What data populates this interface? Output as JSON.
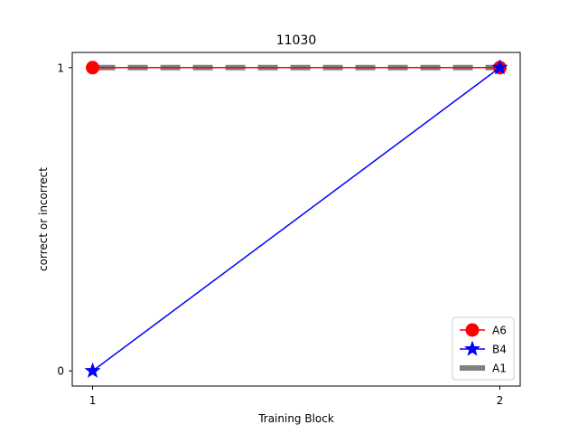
{
  "chart_data": {
    "type": "line",
    "title": "11030",
    "xlabel": "Training Block",
    "ylabel": "correct or incorrect",
    "x": [
      1,
      2
    ],
    "xticks": [
      "1",
      "2"
    ],
    "yticks": [
      "0",
      "1"
    ],
    "xlim": [
      0.95,
      2.05
    ],
    "ylim": [
      -0.05,
      1.05
    ],
    "grid": false,
    "legend_position": "bottom-right",
    "series": [
      {
        "name": "A6",
        "values": [
          1,
          1
        ],
        "color": "#ff0000",
        "marker": "circle",
        "linestyle": "solid"
      },
      {
        "name": "B4",
        "values": [
          0,
          1
        ],
        "color": "#0000ff",
        "marker": "star",
        "linestyle": "solid"
      },
      {
        "name": "A1",
        "values": [
          1,
          1
        ],
        "color": "#808080",
        "marker": "none",
        "linestyle": "dashed"
      }
    ]
  }
}
